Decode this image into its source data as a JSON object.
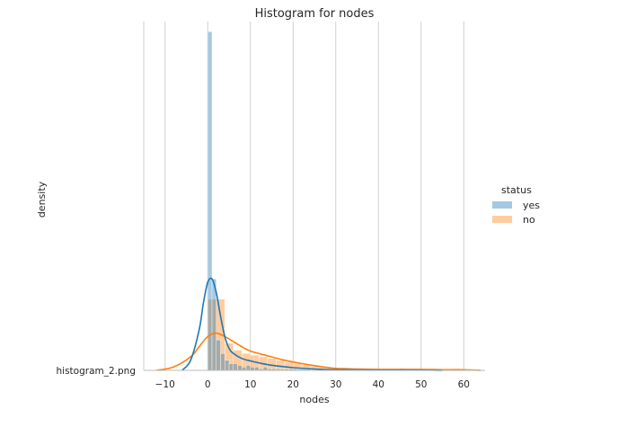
{
  "chart_data": {
    "type": "histogram",
    "title": "Histogram for nodes",
    "xlabel": "nodes",
    "ylabel": "density",
    "y_tick_labels": [
      "histogram_2.png"
    ],
    "xlim": [
      -15,
      65
    ],
    "x_ticks": [
      -10,
      0,
      10,
      20,
      30,
      40,
      50,
      60
    ],
    "grid": "vertical",
    "legend": {
      "title": "status",
      "placement": "right",
      "entries": [
        "yes",
        "no"
      ]
    },
    "colors": {
      "yes": "#1f77b4",
      "no": "#ff7f0e"
    },
    "series": [
      {
        "name": "yes",
        "bin_edges": [
          0,
          1,
          2,
          3,
          4,
          5,
          6,
          7,
          8,
          9,
          10,
          11,
          12,
          13,
          14,
          15,
          16,
          17,
          18,
          19,
          20,
          21,
          22,
          23,
          24,
          25,
          26,
          27,
          28,
          29,
          30,
          31,
          32,
          33,
          34,
          35,
          36,
          37,
          38,
          39,
          40,
          41,
          42,
          43,
          44,
          45,
          46,
          47
        ],
        "densities": [
          1.0,
          0.27,
          0.09,
          0.05,
          0.03,
          0.02,
          0.02,
          0.015,
          0.01,
          0.015,
          0.01,
          0.01,
          0.005,
          0.01,
          0.005,
          0.005,
          0.005,
          0.004,
          0.004,
          0.004,
          0.004,
          0.003,
          0.003,
          0.003,
          0.002,
          0.002,
          0.0,
          0.0,
          0.0,
          0.0,
          0.0,
          0.0,
          0.0,
          0.0,
          0.0,
          0.0,
          0.0,
          0.0,
          0.0,
          0.0,
          0.0,
          0.0,
          0.0,
          0.0,
          0.0,
          0.006,
          0.0
        ],
        "kde": [
          [
            -6,
            0.0
          ],
          [
            -4,
            0.03
          ],
          [
            -2,
            0.12
          ],
          [
            -1,
            0.2
          ],
          [
            0,
            0.26
          ],
          [
            1,
            0.27
          ],
          [
            2,
            0.23
          ],
          [
            3,
            0.16
          ],
          [
            4,
            0.1
          ],
          [
            5,
            0.065
          ],
          [
            6,
            0.05
          ],
          [
            8,
            0.035
          ],
          [
            10,
            0.028
          ],
          [
            12,
            0.022
          ],
          [
            15,
            0.015
          ],
          [
            20,
            0.008
          ],
          [
            25,
            0.004
          ],
          [
            30,
            0.002
          ],
          [
            40,
            0.001
          ],
          [
            50,
            0.001
          ],
          [
            55,
            0.0
          ]
        ]
      },
      {
        "name": "no",
        "bin_edges": [
          0,
          4,
          6,
          8,
          10,
          12,
          14,
          16,
          18,
          20,
          22,
          24,
          26,
          28,
          30,
          32,
          34,
          36,
          38,
          40,
          42,
          44,
          46,
          48,
          50,
          52,
          54,
          56,
          58,
          60
        ],
        "densities": [
          0.21,
          0.08,
          0.06,
          0.05,
          0.045,
          0.04,
          0.035,
          0.03,
          0.025,
          0.02,
          0.015,
          0.012,
          0.01,
          0.008,
          0.006,
          0.005,
          0.004,
          0.003,
          0.003,
          0.002,
          0.002,
          0.002,
          0.002,
          0.002,
          0.002,
          0.002,
          0.001,
          0.001,
          0.001
        ],
        "kde": [
          [
            -12,
            0.0
          ],
          [
            -8,
            0.01
          ],
          [
            -4,
            0.04
          ],
          [
            -2,
            0.07
          ],
          [
            0,
            0.1
          ],
          [
            2,
            0.11
          ],
          [
            4,
            0.1
          ],
          [
            6,
            0.085
          ],
          [
            8,
            0.07
          ],
          [
            10,
            0.057
          ],
          [
            14,
            0.043
          ],
          [
            18,
            0.03
          ],
          [
            22,
            0.02
          ],
          [
            26,
            0.012
          ],
          [
            30,
            0.006
          ],
          [
            35,
            0.004
          ],
          [
            40,
            0.003
          ],
          [
            50,
            0.003
          ],
          [
            55,
            0.002
          ],
          [
            60,
            0.002
          ],
          [
            64,
            0.0
          ]
        ]
      }
    ]
  }
}
